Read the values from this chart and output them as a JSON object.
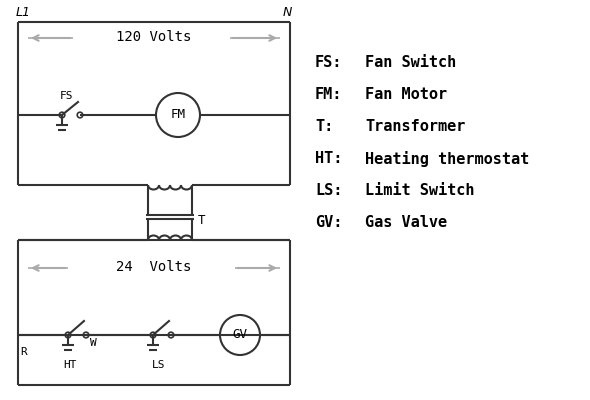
{
  "bg_color": "#ffffff",
  "line_color": "#333333",
  "gray_color": "#aaaaaa",
  "text_color": "#000000",
  "legend_items": [
    [
      "FS:",
      "Fan Switch"
    ],
    [
      "FM:",
      "Fan Motor"
    ],
    [
      "T:",
      "Transformer"
    ],
    [
      "HT:",
      "Heating thermostat"
    ],
    [
      "LS:",
      "Limit Switch"
    ],
    [
      "GV:",
      "Gas Valve"
    ]
  ]
}
